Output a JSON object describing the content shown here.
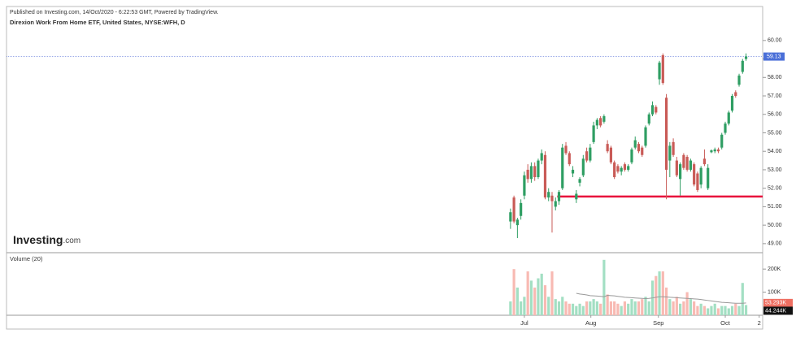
{
  "chart_data": {
    "type": "candlestick",
    "header": "Published on Investing.com, 14/Oct/2020 - 6:22:53 GMT, Powered by TradingView.",
    "title": "Direxion Work From Home ETF, United States, NYSE:WFH, D",
    "logo": {
      "brand": "Investing",
      "suffix": ".com"
    },
    "volume_title": "Volume (20)",
    "up_color": "#2f9e63",
    "down_color": "#c95b57",
    "open": [
      50.2,
      51.5,
      50.0,
      50.5,
      51.6,
      53.0,
      52.5,
      53.2,
      52.6,
      53.5,
      53.8,
      51.5,
      51.6,
      51.0,
      51.3,
      52.0,
      54.3,
      53.9,
      52.8,
      51.4,
      52.3,
      52.7,
      54.0,
      53.5,
      54.5,
      55.4,
      55.8,
      55.6,
      54.4,
      54.2,
      53.4,
      53.2,
      52.9,
      53.3,
      53.0,
      53.4,
      54.2,
      54.4,
      54.2,
      54.3,
      55.5,
      56.0,
      56.4,
      57.9,
      59.2,
      56.9,
      53.5,
      54.5,
      53.5,
      52.5,
      53.8,
      53.7,
      53.0,
      53.3,
      52.8,
      52.2,
      53.6,
      52.0,
      53.95,
      54.0,
      54.1,
      54.2,
      55.0,
      55.5,
      56.2,
      57.2,
      57.6,
      58.3,
      59.0
    ],
    "high": [
      50.9,
      51.6,
      50.4,
      51.4,
      52.9,
      53.3,
      53.4,
      53.4,
      53.6,
      54.1,
      54.0,
      52.0,
      51.8,
      51.5,
      51.9,
      54.4,
      54.5,
      54.0,
      53.2,
      51.9,
      52.6,
      53.8,
      54.2,
      54.4,
      55.6,
      55.8,
      55.9,
      56.0,
      54.6,
      54.3,
      53.5,
      53.3,
      53.2,
      53.4,
      53.3,
      54.2,
      54.8,
      54.5,
      54.3,
      55.4,
      56.1,
      56.7,
      56.5,
      58.9,
      59.3,
      57.1,
      54.5,
      54.7,
      53.7,
      53.4,
      53.9,
      53.8,
      53.6,
      53.4,
      52.9,
      53.2,
      54.1,
      53.3,
      54.1,
      54.2,
      54.2,
      55.0,
      55.6,
      56.2,
      57.1,
      57.3,
      58.2,
      59.0,
      59.3
    ],
    "low": [
      49.8,
      50.1,
      49.3,
      50.3,
      51.4,
      52.3,
      52.3,
      52.4,
      52.5,
      53.3,
      51.4,
      51.3,
      49.6,
      50.8,
      51.1,
      51.9,
      53.8,
      53.2,
      52.6,
      51.2,
      52.1,
      52.6,
      53.4,
      53.4,
      54.4,
      55.2,
      55.3,
      55.5,
      53.9,
      53.3,
      52.5,
      52.8,
      52.7,
      52.9,
      52.9,
      53.3,
      54.1,
      53.9,
      53.7,
      54.2,
      55.4,
      55.9,
      56.0,
      57.6,
      57.6,
      51.4,
      52.6,
      53.7,
      52.6,
      51.6,
      53.0,
      52.9,
      52.9,
      52.1,
      51.8,
      52.0,
      53.2,
      51.9,
      53.9,
      53.9,
      53.9,
      54.1,
      54.9,
      55.4,
      56.1,
      56.9,
      57.5,
      58.2,
      58.9
    ],
    "close": [
      50.7,
      50.2,
      50.3,
      51.2,
      52.7,
      52.5,
      53.2,
      52.6,
      53.5,
      53.9,
      51.5,
      51.8,
      51.3,
      51.3,
      51.8,
      54.2,
      53.9,
      53.3,
      53.0,
      51.7,
      52.5,
      53.6,
      53.5,
      54.2,
      55.4,
      55.7,
      55.4,
      55.9,
      54.0,
      53.4,
      52.6,
      52.9,
      53.1,
      53.0,
      53.2,
      54.1,
      54.6,
      54.0,
      53.8,
      55.3,
      56.0,
      56.5,
      56.1,
      58.8,
      57.7,
      53.0,
      54.3,
      53.8,
      52.7,
      53.3,
      53.1,
      53.0,
      53.5,
      52.2,
      51.9,
      53.1,
      53.3,
      53.1,
      54.05,
      54.1,
      54.0,
      54.9,
      55.5,
      56.1,
      57.0,
      57.0,
      58.1,
      58.9,
      59.13
    ],
    "volume": [
      60000,
      200000,
      120000,
      60000,
      80000,
      190000,
      150000,
      120000,
      160000,
      180000,
      130000,
      80000,
      190000,
      70000,
      60000,
      80000,
      60000,
      50000,
      50000,
      40000,
      50000,
      40000,
      60000,
      60000,
      70000,
      60000,
      50000,
      240000,
      90000,
      60000,
      60000,
      50000,
      40000,
      60000,
      50000,
      70000,
      60000,
      60000,
      70000,
      80000,
      60000,
      150000,
      170000,
      190000,
      190000,
      120000,
      70000,
      60000,
      80000,
      50000,
      60000,
      100000,
      70000,
      60000,
      40000,
      50000,
      40000,
      30000,
      40000,
      50000,
      30000,
      40000,
      40000,
      30000,
      40000,
      50000,
      40000,
      140000,
      44244
    ],
    "volume_ma": [
      null,
      null,
      null,
      null,
      null,
      null,
      null,
      null,
      null,
      null,
      null,
      null,
      null,
      null,
      null,
      null,
      null,
      null,
      null,
      95000,
      92000,
      90000,
      88000,
      85000,
      84000,
      83000,
      82000,
      80000,
      86000,
      85000,
      84000,
      82000,
      80000,
      78000,
      77000,
      76000,
      75000,
      74000,
      73000,
      72000,
      73000,
      75000,
      78000,
      80000,
      80000,
      79000,
      78000,
      77000,
      76000,
      75000,
      74000,
      73000,
      72000,
      71000,
      70000,
      68000,
      66000,
      64000,
      62000,
      60000,
      58000,
      56000,
      55000,
      54000,
      53000,
      52000,
      52000,
      52000,
      53293
    ],
    "volume_value_labels": {
      "last": "44.244K",
      "ma": "53.293K"
    },
    "last_price": 59.13,
    "support_line": {
      "value": 51.55,
      "x_start": 13.5,
      "color": "#e8123c"
    },
    "xlim": [
      -145.5,
      72.8
    ],
    "xticks": [
      {
        "value": 4,
        "label": "Jul"
      },
      {
        "value": 23.2,
        "label": "Aug"
      },
      {
        "value": 42.7,
        "label": "Sep"
      },
      {
        "value": 62,
        "label": "Oct"
      },
      {
        "value": 71.8,
        "label": "2"
      }
    ],
    "ylim": [
      48.51,
      61.84
    ],
    "yticks": [
      {
        "value": 60,
        "label": "60.00"
      },
      {
        "value": 59,
        "label": "59.00"
      },
      {
        "value": 58,
        "label": "58.00"
      },
      {
        "value": 57,
        "label": "57.00"
      },
      {
        "value": 56,
        "label": "56.00"
      },
      {
        "value": 55,
        "label": "55.00"
      },
      {
        "value": 54,
        "label": "54.00"
      },
      {
        "value": 53,
        "label": "53.00"
      },
      {
        "value": 52,
        "label": "52.00"
      },
      {
        "value": 51,
        "label": "51.00"
      },
      {
        "value": 50,
        "label": "50.00"
      },
      {
        "value": 49,
        "label": "49.00"
      }
    ],
    "y2lim": [
      0,
      271000
    ],
    "y2ticks": [
      {
        "value": 200000,
        "label": "200K"
      },
      {
        "value": 100000,
        "label": "100K"
      }
    ]
  }
}
